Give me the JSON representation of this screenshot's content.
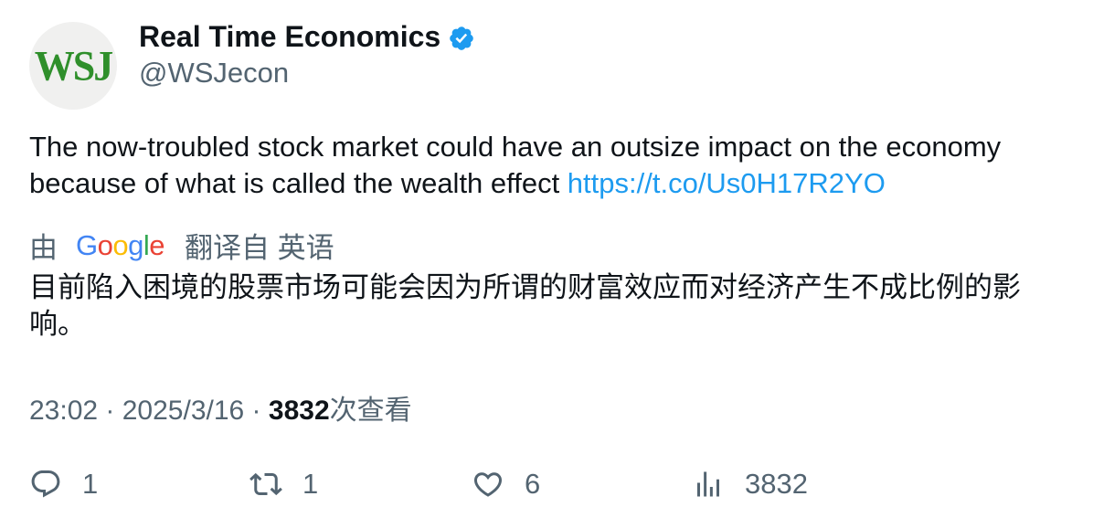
{
  "account": {
    "avatar_text": "WSJ",
    "name": "Real Time Economics",
    "handle": "@WSJecon",
    "verified": true
  },
  "tweet": {
    "text": "The now-troubled stock market could have an outsize impact on the economy because of what is called the wealth effect ",
    "link": "https://t.co/Us0H17R2YO"
  },
  "translation": {
    "prefix": "由",
    "provider": "Google",
    "suffix": "翻译自 英语",
    "text": "目前陷入困境的股票市场可能会因为所谓的财富效应而对经济产生不成比例的影响。"
  },
  "meta": {
    "time": "23:02",
    "sep1": " · ",
    "date": "2025/3/16",
    "sep2": " · ",
    "views": "3832",
    "views_label": "次查看"
  },
  "actions": {
    "replies": "1",
    "reposts": "1",
    "likes": "6",
    "views": "3832"
  },
  "colors": {
    "link": "#1d9bf0",
    "secondary_text": "#536471",
    "verified": "#1d9bf0",
    "wsj_green": "#2f8f2b"
  }
}
